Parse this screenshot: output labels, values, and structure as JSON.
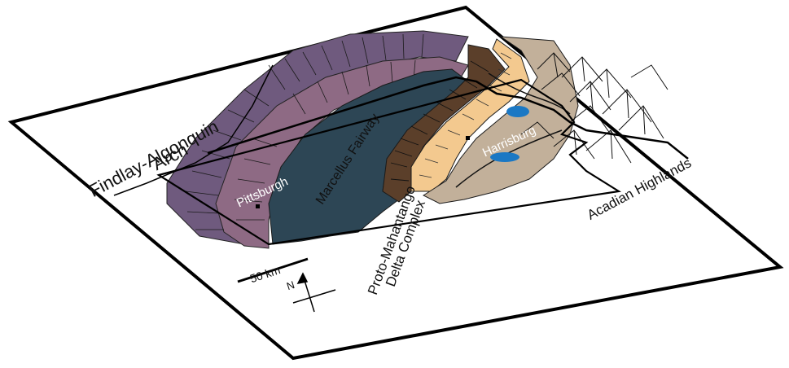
{
  "map": {
    "labels": {
      "arch_line1": "Findlay-Algonquin",
      "arch_line2": "Arch",
      "fairway": "Marcellus Fairway",
      "pittsburgh": "Pittsburgh",
      "harrisburg": "Harrisburg",
      "delta_line1": "Proto-Mahantango",
      "delta_line2": "Delta Complex",
      "highlands": "Acadian Highlands",
      "scale": "50 km",
      "north": "N"
    },
    "colors": {
      "basin": "#2d4655",
      "inner_purple": "#8e6a84",
      "outer_purple": "#6f5a7e",
      "dark_brown": "#5b3f2a",
      "orange": "#f3c98f",
      "tan": "#c2b09a",
      "lake": "#1b78c4"
    }
  }
}
